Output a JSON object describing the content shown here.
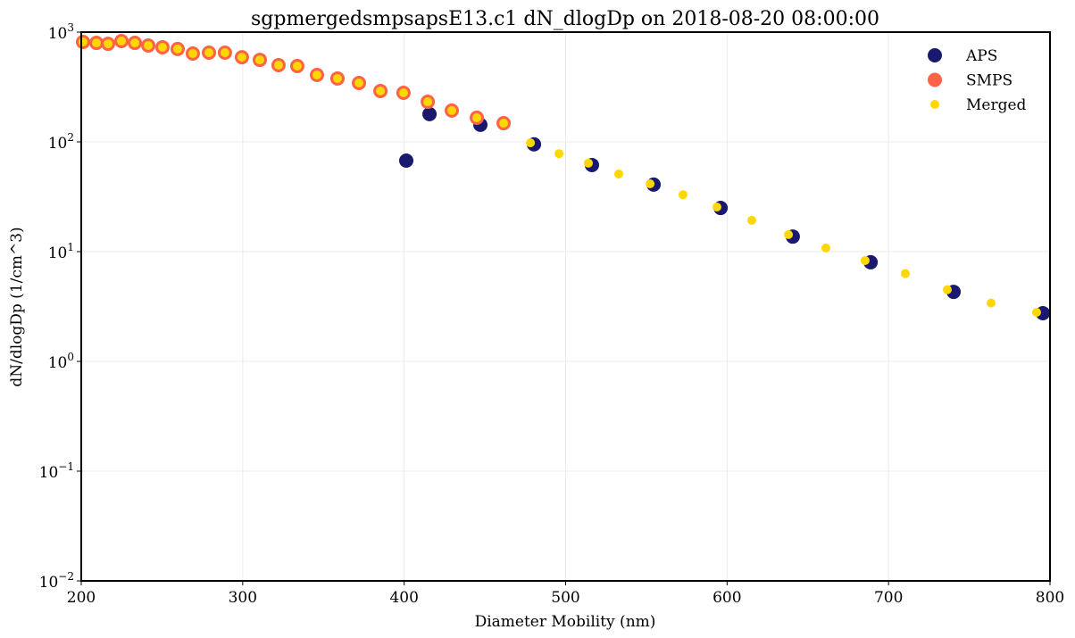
{
  "chart_data": {
    "type": "scatter",
    "title": "sgpmergedsmpsapsE13.c1 dN_dlogDp on 2018-08-20 08:00:00",
    "xlabel": "Diameter Mobility (nm)",
    "ylabel": "dN/dlogDp (1/cm^3)",
    "xlim": [
      200,
      800
    ],
    "ylim": [
      0.01,
      1000
    ],
    "yscale": "log",
    "grid": true,
    "legend_position": "top-right",
    "x_ticks": [
      200,
      300,
      400,
      500,
      600,
      700,
      800
    ],
    "x_tick_labels": [
      "200",
      "300",
      "400",
      "500",
      "600",
      "700",
      "800"
    ],
    "y_ticks": [
      0.01,
      0.1,
      1,
      10,
      100,
      1000
    ],
    "y_tick_labels": [
      {
        "base": "10",
        "exp": "−2"
      },
      {
        "base": "10",
        "exp": "−1"
      },
      {
        "base": "10",
        "exp": "0"
      },
      {
        "base": "10",
        "exp": "1"
      },
      {
        "base": "10",
        "exp": "2"
      },
      {
        "base": "10",
        "exp": "3"
      }
    ],
    "series": [
      {
        "name": "APS",
        "color": "#191970",
        "marker_size": "large",
        "x": [
          401.3,
          415.7,
          447.2,
          480.4,
          516.3,
          554.5,
          596.0,
          640.7,
          688.9,
          740.3,
          795.6
        ],
        "y": [
          67.5,
          179,
          143,
          95,
          61.5,
          40.8,
          25,
          13.7,
          8.0,
          4.3,
          2.75
        ]
      },
      {
        "name": "SMPS",
        "color": "#FF6347",
        "marker_size": "large",
        "x": [
          201.1,
          209.4,
          216.6,
          224.9,
          233.2,
          241.5,
          250.3,
          259.7,
          269.1,
          279.1,
          289.0,
          299.5,
          310.6,
          322.2,
          333.8,
          346.0,
          358.7,
          372.0,
          385.3,
          399.6,
          414.6,
          429.5,
          445.0,
          461.6
        ],
        "y": [
          814,
          798,
          783,
          830,
          798,
          755,
          728,
          702,
          638,
          650,
          650,
          591,
          559,
          500,
          491,
          407,
          378,
          344,
          291,
          280,
          232,
          193,
          166,
          148
        ]
      },
      {
        "name": "Merged",
        "color": "#FFD700",
        "marker_size": "small",
        "x": [
          201.1,
          209.4,
          216.6,
          224.9,
          233.2,
          241.5,
          250.3,
          259.7,
          269.1,
          279.1,
          289.0,
          299.5,
          310.6,
          322.2,
          333.8,
          346.0,
          358.7,
          372.0,
          385.3,
          399.6,
          414.6,
          429.5,
          445.0,
          461.6,
          478.2,
          495.9,
          514.1,
          532.9,
          552.3,
          572.7,
          593.7,
          615.3,
          638.0,
          661.2,
          685.5,
          710.4,
          736.4,
          763.5,
          791.7
        ],
        "y": [
          814,
          798,
          783,
          830,
          798,
          755,
          728,
          702,
          638,
          650,
          650,
          591,
          559,
          500,
          491,
          407,
          378,
          344,
          291,
          280,
          232,
          193,
          166,
          148,
          98,
          78,
          64,
          51,
          41.5,
          33,
          25.5,
          19.3,
          14.3,
          10.8,
          8.3,
          6.3,
          4.5,
          3.4,
          2.8
        ]
      }
    ]
  }
}
